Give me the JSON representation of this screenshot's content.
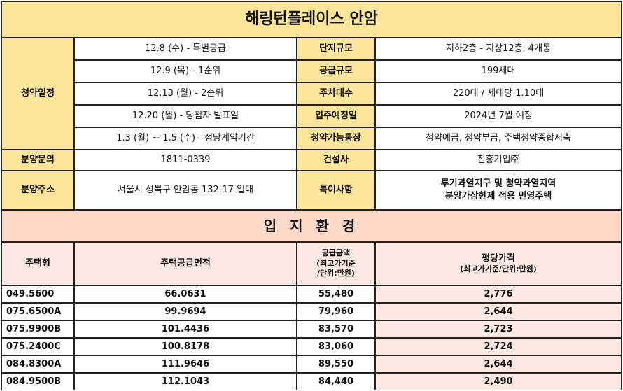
{
  "title": "해링턴플레이스 안암",
  "info": {
    "schedule_label": "청약일정",
    "schedule": [
      "12.8 (수) - 특별공급",
      "12.9 (목) - 1순위",
      "12.13 (월) - 2순위",
      "12.20 (월) - 당첨자 발표일",
      "1.3 (월) ~ 1.5 (수) - 정당계약기간"
    ],
    "specs": [
      {
        "label": "단지규모",
        "value": "지하2층 - 지상12층, 4개동"
      },
      {
        "label": "공급규모",
        "value": "199세대"
      },
      {
        "label": "주차대수",
        "value": "220대 / 세대당 1.10대"
      },
      {
        "label": "입주예정일",
        "value": "2024년 7월 예정"
      },
      {
        "label": "청약가능통장",
        "value": "청약예금, 청약부금, 주택청약종합저축"
      }
    ],
    "inquiry_label": "분양문의",
    "inquiry_value": "1811-0339",
    "builder_label": "건설사",
    "builder_value": "진흥기업㈜",
    "address_label": "분양주소",
    "address_value": "서울시 성북구 안암동 132-17 일대",
    "notes_label": "특이사항",
    "notes_line1": "투기과열지구 및 청약과열지역",
    "notes_line2": "분양가상한제 적용 민영주택"
  },
  "section_title": "입 지 환 경",
  "table": {
    "headers": {
      "type": "주택형",
      "area": "주택공급면적",
      "price_l1": "공급금액",
      "price_l2": "(최고가기준",
      "price_l3": "/단위:만원)",
      "ppp_l1": "평당가격",
      "ppp_l2": "(최고가기준/단위:만원)"
    },
    "rows": [
      {
        "type": "049.5600",
        "area": "66.0631",
        "price": "55,480",
        "ppp": "2,776"
      },
      {
        "type": "075.6500A",
        "area": "99.9694",
        "price": "79,960",
        "ppp": "2,644"
      },
      {
        "type": "075.9900B",
        "area": "101.4436",
        "price": "83,570",
        "ppp": "2,723"
      },
      {
        "type": "075.2400C",
        "area": "100.8178",
        "price": "83,060",
        "ppp": "2,724"
      },
      {
        "type": "084.8300A",
        "area": "111.9646",
        "price": "89,550",
        "ppp": "2,644"
      },
      {
        "type": "084.9500B",
        "area": "112.1043",
        "price": "84,440",
        "ppp": "2,490"
      }
    ]
  }
}
